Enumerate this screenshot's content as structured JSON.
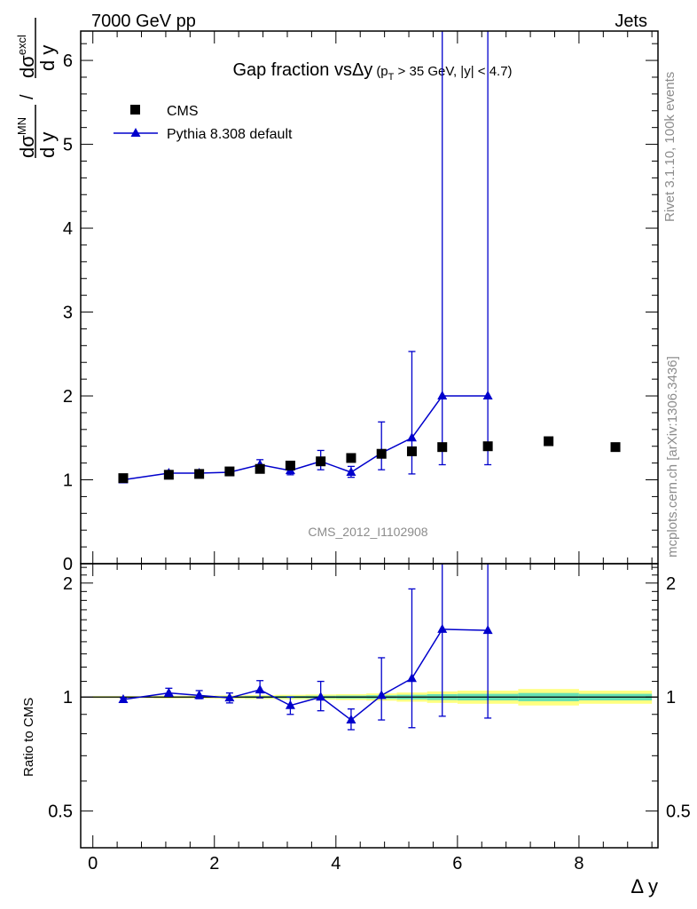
{
  "header": {
    "energy_label": "7000 GeV pp",
    "category_label": "Jets"
  },
  "side_labels": {
    "rivet": "Rivet 3.1.10,  100k events",
    "mcplots": "mcplots.cern.ch [arXiv:1306.3436]"
  },
  "chart_data": [
    {
      "type": "scatter",
      "title_main": "Gap fraction vsΔy",
      "title_sub": "(p",
      "title_sub_index": "T",
      "title_sub_rest": " > 35 GeV, |y| < 4.7)",
      "ylabel_num_a": "dσ",
      "ylabel_num_a_sup": "MN",
      "ylabel_num_a_den": "d y",
      "ylabel_slash": "/",
      "ylabel_num_b": "dσ",
      "ylabel_num_b_sup": "excl",
      "ylabel_num_b_den": "d y",
      "xlim": [
        -0.2,
        9.3
      ],
      "ylim": [
        0,
        6.35
      ],
      "yticks": [
        0,
        1,
        2,
        3,
        4,
        5,
        6
      ],
      "ytick_labels": [
        "0",
        "1",
        "2",
        "3",
        "4",
        "5",
        "6"
      ],
      "analysis_tag": "CMS_2012_I1102908",
      "legend": [
        {
          "name": "CMS",
          "marker": "square",
          "color": "#000000"
        },
        {
          "name": "Pythia 8.308 default",
          "marker": "triangle",
          "color": "#0000cc"
        }
      ],
      "series": [
        {
          "name": "CMS",
          "color": "#000000",
          "x": [
            0.5,
            1.25,
            1.75,
            2.25,
            2.75,
            3.25,
            3.75,
            4.25,
            4.75,
            5.25,
            5.75,
            6.5,
            7.5,
            8.6
          ],
          "y": [
            1.02,
            1.06,
            1.07,
            1.1,
            1.13,
            1.17,
            1.22,
            1.26,
            1.31,
            1.34,
            1.39,
            1.4,
            1.46,
            1.39
          ]
        },
        {
          "name": "Pythia 8.308 default",
          "color": "#0000cc",
          "x": [
            0.5,
            1.25,
            1.75,
            2.25,
            2.75,
            3.25,
            3.75,
            4.25,
            4.75,
            5.25,
            5.75,
            6.5
          ],
          "y": [
            1.0,
            1.08,
            1.08,
            1.09,
            1.18,
            1.11,
            1.22,
            1.09,
            1.32,
            1.5,
            2.0,
            2.0
          ],
          "err_low": [
            0.01,
            0.02,
            0.02,
            0.03,
            0.05,
            0.05,
            0.1,
            0.06,
            0.2,
            0.43,
            0.82,
            0.82
          ],
          "err_high": [
            0.01,
            0.03,
            0.03,
            0.03,
            0.06,
            0.05,
            0.13,
            0.07,
            0.37,
            1.03,
            4.5,
            4.5
          ]
        }
      ]
    },
    {
      "type": "scatter",
      "ylabel": "Ratio to CMS",
      "xlabel": "Δ y",
      "xlim": [
        -0.2,
        9.3
      ],
      "ylim": [
        0.4,
        2.25
      ],
      "yticks": [
        0.5,
        1,
        2
      ],
      "ytick_labels": [
        "0.5",
        "1",
        "2"
      ],
      "xticks": [
        0,
        2,
        4,
        6,
        8
      ],
      "xtick_labels": [
        "0",
        "2",
        "4",
        "6",
        "8"
      ],
      "reference_line": 1,
      "uncertainty_band": {
        "x_edges": [
          0.0,
          1.0,
          1.5,
          2.0,
          2.5,
          3.0,
          3.5,
          4.0,
          4.5,
          5.0,
          5.5,
          6.0,
          7.0,
          8.0,
          9.2
        ],
        "inner_half_width": [
          0.003,
          0.004,
          0.004,
          0.005,
          0.006,
          0.007,
          0.008,
          0.009,
          0.011,
          0.014,
          0.018,
          0.02,
          0.025,
          0.02
        ],
        "outer_half_width": [
          0.006,
          0.008,
          0.008,
          0.01,
          0.012,
          0.014,
          0.016,
          0.018,
          0.022,
          0.028,
          0.035,
          0.04,
          0.05,
          0.04
        ],
        "inner_color": "#66e0b4",
        "outer_color": "#ffff80"
      },
      "series": [
        {
          "name": "Pythia 8.308 default",
          "color": "#0000cc",
          "x": [
            0.5,
            1.25,
            1.75,
            2.25,
            2.75,
            3.25,
            3.75,
            4.25,
            4.75,
            5.25,
            5.75,
            6.5
          ],
          "y": [
            0.985,
            1.025,
            1.01,
            0.995,
            1.045,
            0.95,
            1.0,
            0.87,
            1.01,
            1.12,
            1.51,
            1.5
          ],
          "err_low": [
            0.01,
            0.02,
            0.02,
            0.03,
            0.05,
            0.05,
            0.08,
            0.05,
            0.14,
            0.29,
            0.62,
            0.62
          ],
          "err_high": [
            0.01,
            0.03,
            0.03,
            0.03,
            0.06,
            0.05,
            0.1,
            0.06,
            0.26,
            0.81,
            0.9,
            0.9
          ]
        }
      ]
    }
  ]
}
